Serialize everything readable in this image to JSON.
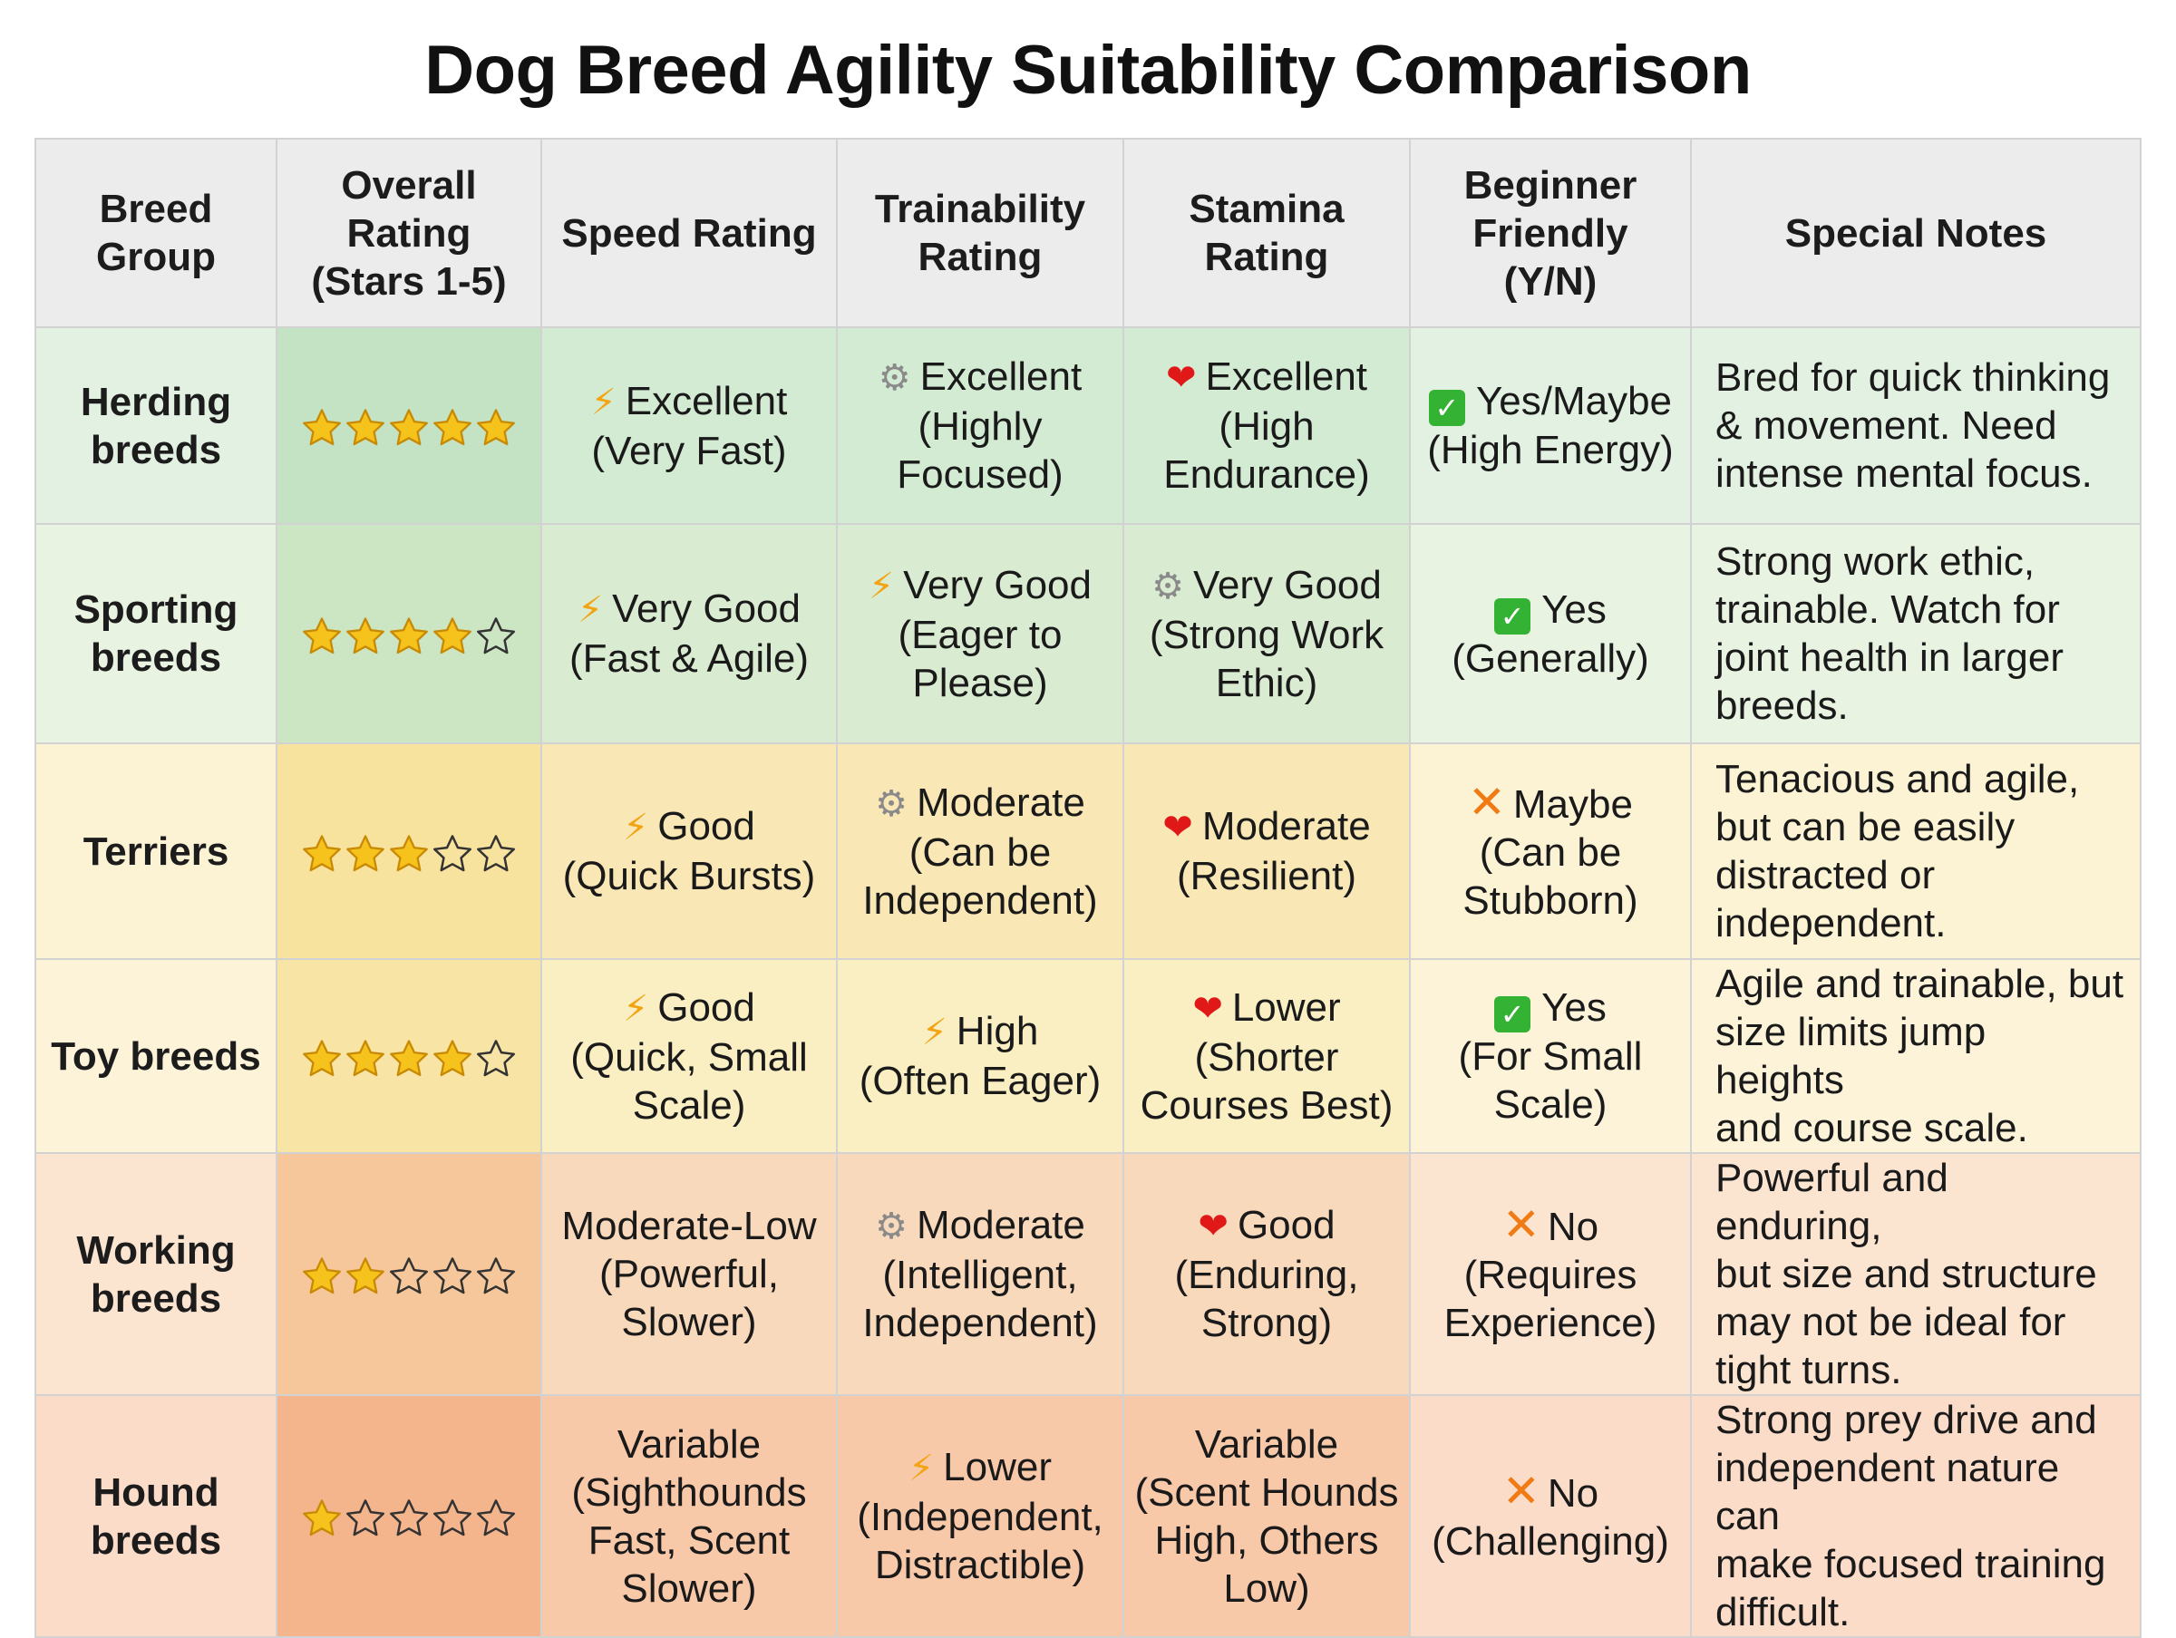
{
  "title": "Dog Breed Agility Suitability Comparison",
  "colors": {
    "filled_star": "#f6c21c",
    "filled_star_stroke": "#c88a05",
    "empty_star_stroke": "#333333",
    "header_bg": "#ececec"
  },
  "chart_data": {
    "type": "table",
    "title": "Dog Breed Agility Suitability Comparison",
    "columns": [
      "Breed\nGroup",
      "Overall\nRating\n(Stars 1-5)",
      "Speed Rating",
      "Trainability\nRating",
      "Stamina\nRating",
      "Beginner\nFriendly\n(Y/N)",
      "Special Notes"
    ],
    "star_max": 5,
    "rows": [
      {
        "breed_group": "Herding\nbreeds",
        "stars": 5,
        "speed": {
          "icon": "lightning-icon",
          "text": "Excellent\n(Very Fast)"
        },
        "trainability": {
          "icon": "gear-icon",
          "text": "Excellent\n(Highly\nFocused)"
        },
        "stamina": {
          "icon": "heart-icon",
          "text": "Excellent\n(High\nEndurance)"
        },
        "beginner": {
          "icon": "check-icon",
          "text": "Yes/Maybe\n(High Energy)"
        },
        "notes": "Bred for quick thinking\n& movement. Need\nintense mental focus.",
        "colors": {
          "base": "#e3f1e3",
          "star": "#c4e2c4",
          "mid": "#d3ebd3"
        }
      },
      {
        "breed_group": "Sporting\nbreeds",
        "stars": 4,
        "speed": {
          "icon": "lightning-icon",
          "text": "Very Good\n(Fast & Agile)"
        },
        "trainability": {
          "icon": "lightning-icon",
          "text": "Very Good\n(Eager to\nPlease)"
        },
        "stamina": {
          "icon": "gear-icon",
          "text": "Very Good\n(Strong Work\nEthic)"
        },
        "beginner": {
          "icon": "check-icon",
          "text": "Yes\n(Generally)"
        },
        "notes": "Strong work ethic,\ntrainable. Watch for\njoint health in larger\nbreeds.",
        "colors": {
          "base": "#e9f3e2",
          "star": "#cce5c3",
          "mid": "#d9ecd1"
        }
      },
      {
        "breed_group": "Terriers",
        "stars": 3,
        "speed": {
          "icon": "lightning-icon",
          "text": "Good\n(Quick Bursts)"
        },
        "trainability": {
          "icon": "gear-icon",
          "text": "Moderate\n(Can be\nIndependent)"
        },
        "stamina": {
          "icon": "heart-icon",
          "text": "Moderate\n(Resilient)"
        },
        "beginner": {
          "icon": "cross-icon",
          "text": "Maybe\n(Can be\nStubborn)"
        },
        "notes": "Tenacious and agile,\nbut can be easily\ndistracted or\nindependent.",
        "colors": {
          "base": "#fcf2d4",
          "star": "#f8e39e",
          "mid": "#f9e8b5"
        }
      },
      {
        "breed_group": "Toy breeds",
        "stars": 4,
        "speed": {
          "icon": "lightning-icon",
          "text": "Good\n(Quick, Small\nScale)"
        },
        "trainability": {
          "icon": "lightning-icon",
          "text": "High\n(Often Eager)"
        },
        "stamina": {
          "icon": "heart-icon",
          "text": "Lower\n(Shorter\nCourses Best)"
        },
        "beginner": {
          "icon": "check-icon",
          "text": "Yes\n(For Small\nScale)"
        },
        "notes": "Agile and trainable, but\nsize limits jump heights\nand course scale.",
        "colors": {
          "base": "#fcf3d9",
          "star": "#f8e5a6",
          "mid": "#faeec3"
        }
      },
      {
        "breed_group": "Working\nbreeds",
        "stars": 2,
        "speed": {
          "icon": "",
          "text": "Moderate-Low\n(Powerful,\nSlower)"
        },
        "trainability": {
          "icon": "gear-icon",
          "text": "Moderate\n(Intelligent,\nIndependent)"
        },
        "stamina": {
          "icon": "heart-icon",
          "text": "Good\n(Enduring,\nStrong)"
        },
        "beginner": {
          "icon": "cross-icon",
          "text": "No\n(Requires\nExperience)"
        },
        "notes": "Powerful and enduring,\nbut size and structure\nmay not be ideal for\ntight turns.",
        "colors": {
          "base": "#fbe5d1",
          "star": "#f6c79b",
          "mid": "#f9d9bb"
        }
      },
      {
        "breed_group": "Hound\nbreeds",
        "stars": 1,
        "speed": {
          "icon": "",
          "text": "Variable\n(Sighthounds\nFast, Scent\nSlower)"
        },
        "trainability": {
          "icon": "lightning-icon",
          "text": "Lower\n(Independent,\nDistractible)"
        },
        "stamina": {
          "icon": "",
          "text": "Variable\n(Scent Hounds\nHigh, Others\nLow)"
        },
        "beginner": {
          "icon": "cross-icon",
          "text": "No\n(Challenging)"
        },
        "notes": "Strong prey drive and\nindependent nature can\nmake focused training\ndifficult.",
        "colors": {
          "base": "#fbdcc8",
          "star": "#f4b48c",
          "mid": "#f8c9a9"
        }
      }
    ]
  }
}
